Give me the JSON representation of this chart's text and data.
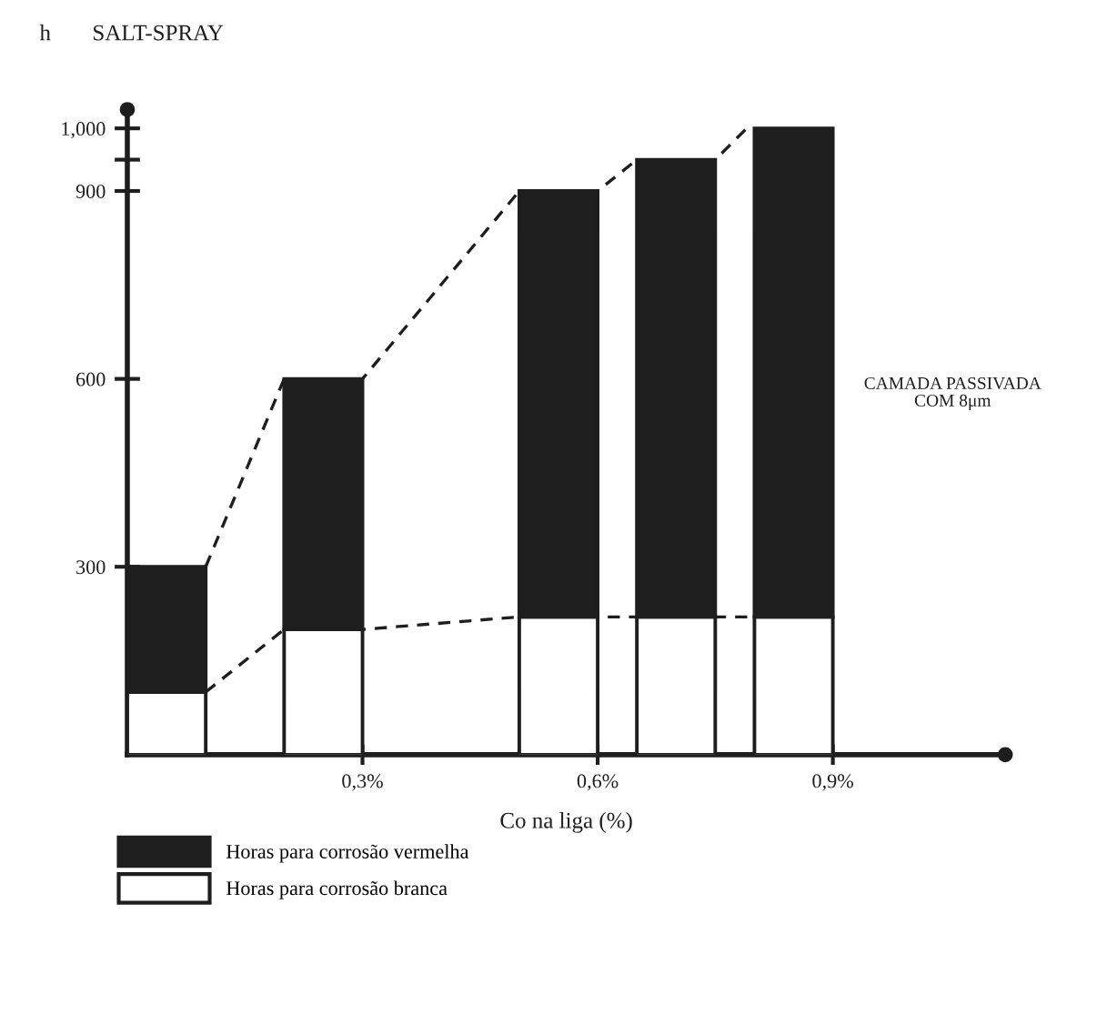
{
  "chart_data": {
    "type": "bar",
    "title": "SALT-SPRAY",
    "ylabel": "h",
    "xlabel": "Co na liga (%)",
    "x": [
      0.05,
      0.25,
      0.55,
      0.7,
      0.85
    ],
    "stacked": true,
    "series": [
      {
        "name": "Horas para corrosão branca",
        "color": "#ffffff",
        "values": [
          100,
          200,
          220,
          220,
          220
        ]
      },
      {
        "name": "Horas para corrosão vermelha",
        "color": "#1e1e1e",
        "values": [
          200,
          400,
          680,
          730,
          780
        ]
      },
      {
        "type": "line",
        "color": "#1e1e1e",
        "line_style": "dashed",
        "x": [
          0.1,
          0.2,
          0.3,
          0.5,
          0.6,
          0.65,
          0.75,
          0.79
        ],
        "values": [
          300,
          600,
          600,
          900,
          900,
          950,
          950,
          1000
        ]
      },
      {
        "type": "line",
        "color": "#1e1e1e",
        "line_style": "dashed",
        "x": [
          0.1,
          0.2,
          0.3,
          0.5,
          0.6,
          0.65,
          0.75,
          0.8
        ],
        "values": [
          100,
          200,
          200,
          220,
          220,
          220,
          220,
          220
        ]
      }
    ],
    "xlim": [
      0,
      1.12
    ],
    "xticks": [
      {
        "value": 0.3,
        "label": "0,3%"
      },
      {
        "value": 0.6,
        "label": "0,6%"
      },
      {
        "value": 0.9,
        "label": "0,9%"
      }
    ],
    "ylim": [
      0,
      1030
    ],
    "yticks": [
      300,
      600,
      900,
      {
        "value": 950,
        "label": null
      },
      {
        "value": 1000,
        "label": "1,000"
      }
    ],
    "annotations": [
      "CAMADA PASSIVADA\nCOM 8μm"
    ],
    "legend": "bottom left",
    "grid": false
  }
}
